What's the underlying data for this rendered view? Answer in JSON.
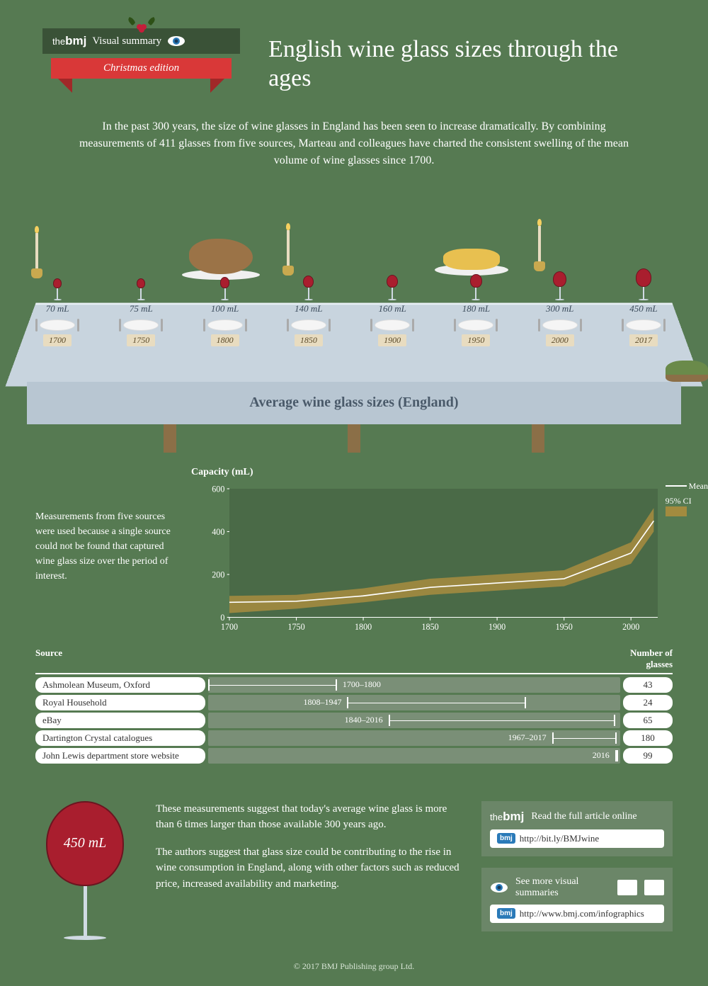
{
  "header": {
    "brand": {
      "the": "the",
      "bmj": "bmj"
    },
    "visual_summary": "Visual summary",
    "edition": "Christmas edition",
    "title": "English wine glass sizes through the ages"
  },
  "intro": "In the past 300 years, the size of wine glasses in England has been seen to increase dramatically. By combining measurements of 411 glasses from five sources, Marteau and colleagues have charted the consistent swelling of the mean volume of wine glasses since 1700.",
  "table_caption": "Average wine glass sizes (England)",
  "glasses": [
    {
      "year": "1700",
      "volume": "70 mL",
      "size": 70
    },
    {
      "year": "1750",
      "volume": "75 mL",
      "size": 75
    },
    {
      "year": "1800",
      "volume": "100 mL",
      "size": 100
    },
    {
      "year": "1850",
      "volume": "140 mL",
      "size": 140
    },
    {
      "year": "1900",
      "volume": "160 mL",
      "size": 160
    },
    {
      "year": "1950",
      "volume": "180 mL",
      "size": 180
    },
    {
      "year": "2000",
      "volume": "300 mL",
      "size": 300
    },
    {
      "year": "2017",
      "volume": "450 mL",
      "size": 450
    }
  ],
  "chart": {
    "type": "line",
    "aside": "Measurements from five sources were used because a single source could not be found that captured wine glass size over the period of interest.",
    "y_label": "Capacity (mL)",
    "y_ticks": [
      0,
      200,
      400,
      600
    ],
    "x_ticks": [
      1700,
      1750,
      1800,
      1850,
      1900,
      1950,
      2000
    ],
    "x_min": 1700,
    "x_max": 2020,
    "y_min": 0,
    "y_max": 600,
    "mean_line": [
      [
        1700,
        70
      ],
      [
        1750,
        75
      ],
      [
        1800,
        100
      ],
      [
        1850,
        140
      ],
      [
        1900,
        160
      ],
      [
        1950,
        180
      ],
      [
        2000,
        300
      ],
      [
        2017,
        450
      ]
    ],
    "ci_upper": [
      [
        1700,
        100
      ],
      [
        1750,
        105
      ],
      [
        1800,
        135
      ],
      [
        1850,
        180
      ],
      [
        1900,
        200
      ],
      [
        1950,
        220
      ],
      [
        2000,
        350
      ],
      [
        2017,
        510
      ]
    ],
    "ci_lower": [
      [
        1700,
        20
      ],
      [
        1750,
        40
      ],
      [
        1800,
        70
      ],
      [
        1850,
        105
      ],
      [
        1900,
        125
      ],
      [
        1950,
        145
      ],
      [
        2000,
        250
      ],
      [
        2017,
        400
      ]
    ],
    "legend": {
      "mean": "Mean",
      "ci": "95% CI"
    },
    "colors": {
      "background": "#4a6a47",
      "mean_line": "#ffffff",
      "ci_fill": "#a38b3f",
      "axis": "#ffffff",
      "grid": "#ffffff"
    },
    "line_width": 1.5
  },
  "sources_header": {
    "source": "Source",
    "number": "Number of glasses"
  },
  "sources": [
    {
      "name": "Ashmolean Museum, Oxford",
      "range_label": "1700–1800",
      "start": 1700,
      "end": 1800,
      "count": "43",
      "label_side": "right"
    },
    {
      "name": "Royal Household",
      "range_label": "1808–1947",
      "start": 1808,
      "end": 1947,
      "count": "24",
      "label_side": "left"
    },
    {
      "name": "eBay",
      "range_label": "1840–2016",
      "start": 1840,
      "end": 2016,
      "count": "65",
      "label_side": "left"
    },
    {
      "name": "Dartington Crystal catalogues",
      "range_label": "1967–2017",
      "start": 1967,
      "end": 2017,
      "count": "180",
      "label_side": "left"
    },
    {
      "name": "John Lewis department store website",
      "range_label": "2016",
      "start": 2016,
      "end": 2016,
      "count": "99",
      "label_side": "left"
    }
  ],
  "big_glass": {
    "volume": "450 mL"
  },
  "bottom": {
    "p1": "These measurements suggest that today's average wine glass is more than 6 times larger than those available 300 years ago.",
    "p2": "The authors suggest that glass size could be contributing to the rise in wine consumption in England, along with other factors such as reduced price, increased availability and marketing."
  },
  "links": {
    "article": {
      "head": "Read the full article online",
      "url": "http://bit.ly/BMJwine"
    },
    "summaries": {
      "head": "See more visual summaries",
      "url": "http://www.bmj.com/infographics"
    }
  },
  "footer": "© 2017 BMJ Publishing group Ltd.",
  "colors": {
    "page_bg": "#567a52",
    "wine": "#a91e2e",
    "table_top": "#c8d4de",
    "table_front": "#b8c6d2",
    "ribbon": "#d93838",
    "holly_green": "#2d5016",
    "holly_berry": "#c41e3a"
  }
}
